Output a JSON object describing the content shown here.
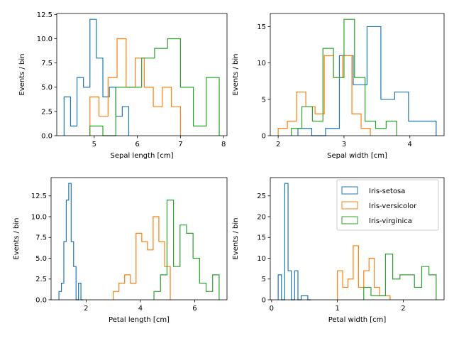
{
  "colors": {
    "setosa": "#1f77b4",
    "versicolor": "#ff7f0e",
    "virginica": "#2ca02c"
  },
  "legend": [
    "Iris-setosa",
    "Iris-versicolor",
    "Iris-virginica"
  ],
  "chart_data": [
    {
      "type": "histogram-step",
      "xlabel": "Sepal length [cm]",
      "ylabel": "Events / bin",
      "xlim": [
        4.13,
        8.08
      ],
      "ylim": [
        0,
        12.6
      ],
      "xticks": [
        5,
        6,
        7,
        8
      ],
      "yticks": [
        "0.0",
        "2.5",
        "5.0",
        "7.5",
        "10.0",
        "12.5"
      ],
      "ytick_values": [
        0,
        2.5,
        5,
        7.5,
        10,
        12.5
      ],
      "series": [
        {
          "name": "Iris-setosa",
          "color_key": "setosa",
          "edges": [
            4.3,
            4.45,
            4.6,
            4.75,
            4.9,
            5.05,
            5.2,
            5.35,
            5.5,
            5.65,
            5.8
          ],
          "counts": [
            4,
            1,
            6,
            5,
            12,
            8,
            4,
            5,
            2,
            3
          ]
        },
        {
          "name": "Iris-versicolor",
          "color_key": "versicolor",
          "edges": [
            4.9,
            5.11,
            5.32,
            5.53,
            5.74,
            5.95,
            6.16,
            6.37,
            6.58,
            6.79,
            7.0
          ],
          "counts": [
            4,
            2,
            6,
            10,
            5,
            8,
            5,
            3,
            5,
            3
          ]
        },
        {
          "name": "Iris-virginica",
          "color_key": "virginica",
          "edges": [
            4.9,
            5.2,
            5.5,
            5.8,
            6.1,
            6.4,
            6.7,
            7.0,
            7.3,
            7.6,
            7.9
          ],
          "counts": [
            1,
            0,
            5,
            5,
            8,
            9,
            10,
            5,
            1,
            6
          ]
        }
      ]
    },
    {
      "type": "histogram-step",
      "xlabel": "Sepal width [cm]",
      "ylabel": "Events / bin",
      "xlim": [
        1.88,
        4.52
      ],
      "ylim": [
        0,
        16.8
      ],
      "xticks": [
        2,
        3,
        4
      ],
      "yticks": [
        "0",
        "5",
        "10",
        "15"
      ],
      "ytick_values": [
        0,
        5,
        10,
        15
      ],
      "series": [
        {
          "name": "Iris-setosa",
          "color_key": "setosa",
          "edges": [
            2.3,
            2.51,
            2.72,
            2.93,
            3.14,
            3.35,
            3.56,
            3.77,
            3.98,
            4.19,
            4.4
          ],
          "counts": [
            1,
            0,
            1,
            11,
            7,
            15,
            5,
            6,
            2,
            2
          ]
        },
        {
          "name": "Iris-versicolor",
          "color_key": "versicolor",
          "edges": [
            2.0,
            2.14,
            2.28,
            2.42,
            2.56,
            2.7,
            2.84,
            2.98,
            3.12,
            3.26,
            3.4
          ],
          "counts": [
            1,
            2,
            6,
            4,
            3,
            11,
            8,
            11,
            3,
            1
          ]
        },
        {
          "name": "Iris-virginica",
          "color_key": "virginica",
          "edges": [
            2.2,
            2.36,
            2.52,
            2.68,
            2.84,
            3.0,
            3.16,
            3.32,
            3.48,
            3.64,
            3.8
          ],
          "counts": [
            1,
            4,
            2,
            12,
            8,
            16,
            8,
            2,
            1,
            2
          ]
        }
      ]
    },
    {
      "type": "histogram-step",
      "xlabel": "Petal length [cm]",
      "ylabel": "Events / bin",
      "xlim": [
        0.71,
        7.19
      ],
      "ylim": [
        0,
        14.7
      ],
      "xticks": [
        2,
        4,
        6
      ],
      "yticks": [
        "0.0",
        "2.5",
        "5.0",
        "7.5",
        "10.0",
        "12.5"
      ],
      "ytick_values": [
        0,
        2.5,
        5,
        7.5,
        10,
        12.5
      ],
      "series": [
        {
          "name": "Iris-setosa",
          "color_key": "setosa",
          "edges": [
            1.0,
            1.09,
            1.18,
            1.27,
            1.36,
            1.45,
            1.54,
            1.63,
            1.72,
            1.81,
            1.9
          ],
          "counts": [
            1,
            2,
            7,
            12,
            14,
            7,
            4,
            0,
            2,
            0
          ]
        },
        {
          "name": "Iris-versicolor",
          "color_key": "versicolor",
          "edges": [
            3.0,
            3.21,
            3.42,
            3.63,
            3.84,
            4.05,
            4.26,
            4.47,
            4.68,
            4.89,
            5.1
          ],
          "counts": [
            1,
            2,
            3,
            2,
            8,
            7,
            6,
            10,
            7,
            4
          ]
        },
        {
          "name": "Iris-virginica",
          "color_key": "virginica",
          "edges": [
            4.5,
            4.74,
            4.98,
            5.22,
            5.46,
            5.7,
            5.94,
            6.18,
            6.42,
            6.66,
            6.9
          ],
          "counts": [
            1,
            3,
            12,
            4,
            9,
            8,
            5,
            2,
            1,
            3
          ]
        }
      ]
    },
    {
      "type": "histogram-step",
      "xlabel": "Petal width [cm]",
      "ylabel": "Events / bin",
      "xlim": [
        -0.02,
        2.62
      ],
      "ylim": [
        0,
        29.4
      ],
      "xticks": [
        0,
        1,
        2
      ],
      "yticks": [
        "0",
        "5",
        "10",
        "15",
        "20",
        "25"
      ],
      "ytick_values": [
        0,
        5,
        10,
        15,
        20,
        25
      ],
      "series": [
        {
          "name": "Iris-setosa",
          "color_key": "setosa",
          "edges": [
            0.1,
            0.15,
            0.2,
            0.25,
            0.3,
            0.35,
            0.4,
            0.45,
            0.5,
            0.55,
            0.6
          ],
          "counts": [
            6,
            0,
            28,
            7,
            0,
            7,
            0,
            1,
            1,
            0
          ]
        },
        {
          "name": "Iris-versicolor",
          "color_key": "versicolor",
          "edges": [
            1.0,
            1.08,
            1.16,
            1.24,
            1.32,
            1.4,
            1.48,
            1.56,
            1.64,
            1.72,
            1.8
          ],
          "counts": [
            7,
            3,
            5,
            13,
            3,
            7,
            10,
            3,
            1,
            1
          ]
        },
        {
          "name": "Iris-virginica",
          "color_key": "virginica",
          "edges": [
            1.4,
            1.51,
            1.62,
            1.73,
            1.84,
            1.95,
            2.06,
            2.17,
            2.28,
            2.39,
            2.5
          ],
          "counts": [
            3,
            1,
            1,
            11,
            5,
            6,
            6,
            3,
            8,
            6
          ]
        }
      ]
    }
  ]
}
